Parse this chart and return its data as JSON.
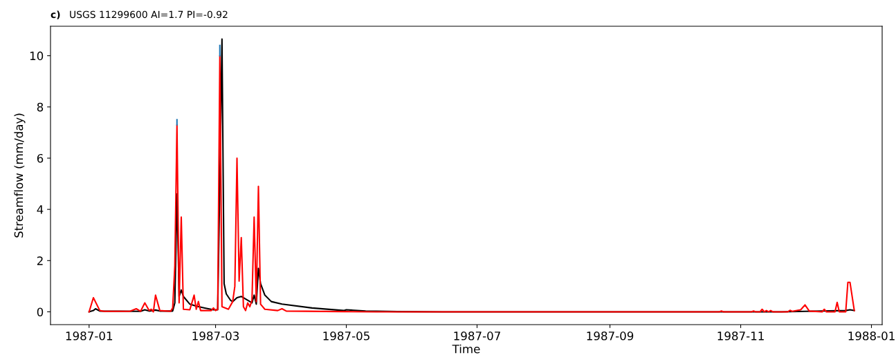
{
  "chart_data": {
    "type": "line",
    "title": "USGS 11299600 AI=1.7 PI=-0.92",
    "annotations": [
      "c)"
    ],
    "xlabel": "Time",
    "ylabel": "Streamflow (mm/day)",
    "xlim": [
      "1986-12-14",
      "1988-01-06"
    ],
    "xticks": [
      {
        "value": "1987-01-01",
        "label": "1987-01"
      },
      {
        "value": "1987-03-01",
        "label": "1987-03"
      },
      {
        "value": "1987-05-01",
        "label": "1987-05"
      },
      {
        "value": "1987-07-01",
        "label": "1987-07"
      },
      {
        "value": "1987-09-01",
        "label": "1987-09"
      },
      {
        "value": "1987-11-01",
        "label": "1987-11"
      },
      {
        "value": "1988-01-01",
        "label": "1988-01"
      }
    ],
    "ylim": [
      -0.5,
      11.15
    ],
    "yticks": [
      0,
      2,
      4,
      6,
      8,
      10
    ],
    "grid": false,
    "series": [
      {
        "color": "#000000",
        "x": [
          "1987-01-01",
          "1987-01-03",
          "1987-01-04",
          "1987-01-06",
          "1987-01-25",
          "1987-01-27",
          "1987-01-29",
          "1987-02-01",
          "1987-02-03",
          "1987-02-09",
          "1987-02-10",
          "1987-02-11",
          "1987-02-12",
          "1987-02-13",
          "1987-02-14",
          "1987-02-17",
          "1987-02-20",
          "1987-02-24",
          "1987-02-28",
          "1987-03-02",
          "1987-03-03",
          "1987-03-04",
          "1987-03-05",
          "1987-03-06",
          "1987-03-08",
          "1987-03-09",
          "1987-03-11",
          "1987-03-13",
          "1987-03-15",
          "1987-03-18",
          "1987-03-19",
          "1987-03-20",
          "1987-03-21",
          "1987-03-22",
          "1987-03-24",
          "1987-03-27",
          "1987-04-01",
          "1987-04-15",
          "1987-04-30",
          "1987-05-01",
          "1987-05-10",
          "1987-05-25",
          "1987-06-15",
          "1987-11-20",
          "1987-12-01",
          "1987-12-20",
          "1987-12-22",
          "1987-12-24"
        ],
        "values": [
          0,
          0.05,
          0.12,
          0.03,
          0.02,
          0.08,
          0.03,
          0.07,
          0.03,
          0.03,
          0.35,
          4.6,
          0.6,
          0.85,
          0.6,
          0.3,
          0.22,
          0.15,
          0.08,
          0.08,
          5.0,
          10.65,
          1.1,
          0.7,
          0.45,
          0.4,
          0.55,
          0.6,
          0.5,
          0.35,
          0.65,
          0.3,
          1.7,
          1.1,
          0.65,
          0.4,
          0.3,
          0.15,
          0.05,
          0.08,
          0.03,
          0.01,
          0,
          0,
          0.02,
          0.05,
          0.08,
          0.05
        ]
      },
      {
        "color": "#ff0000",
        "x": [
          "1987-01-01",
          "1987-01-03",
          "1987-01-06",
          "1987-01-08",
          "1987-01-20",
          "1987-01-23",
          "1987-01-25",
          "1987-01-27",
          "1987-01-29",
          "1987-01-30",
          "1987-01-31",
          "1987-02-01",
          "1987-02-03",
          "1987-02-08",
          "1987-02-09",
          "1987-02-10",
          "1987-02-11",
          "1987-02-12",
          "1987-02-13",
          "1987-02-14",
          "1987-02-17",
          "1987-02-19",
          "1987-02-20",
          "1987-02-21",
          "1987-02-22",
          "1987-02-27",
          "1987-02-28",
          "1987-03-01",
          "1987-03-02",
          "1987-03-03",
          "1987-03-04",
          "1987-03-07",
          "1987-03-09",
          "1987-03-10",
          "1987-03-11",
          "1987-03-12",
          "1987-03-13",
          "1987-03-14",
          "1987-03-15",
          "1987-03-16",
          "1987-03-17",
          "1987-03-18",
          "1987-03-19",
          "1987-03-20",
          "1987-03-21",
          "1987-03-22",
          "1987-03-24",
          "1987-03-30",
          "1987-04-01",
          "1987-04-03",
          "1987-04-30",
          "1987-05-15",
          "1987-10-22",
          "1987-10-23",
          "1987-10-24",
          "1987-11-06",
          "1987-11-07",
          "1987-11-08",
          "1987-11-10",
          "1987-11-11",
          "1987-11-12",
          "1987-11-13",
          "1987-11-14",
          "1987-11-15",
          "1987-11-16",
          "1987-11-23",
          "1987-11-24",
          "1987-11-25",
          "1987-11-29",
          "1987-12-01",
          "1987-12-03",
          "1987-12-09",
          "1987-12-10",
          "1987-12-11",
          "1987-12-15",
          "1987-12-16",
          "1987-12-17",
          "1987-12-20",
          "1987-12-21",
          "1987-12-22",
          "1987-12-24"
        ],
        "values": [
          0,
          0.55,
          0.05,
          0.02,
          0.02,
          0.12,
          0.02,
          0.35,
          0.05,
          0.1,
          0,
          0.65,
          0.05,
          0.02,
          0.15,
          1.8,
          7.3,
          0.35,
          3.7,
          0.1,
          0.08,
          0.65,
          0.1,
          0.4,
          0.05,
          0.05,
          0.15,
          0.05,
          0.1,
          10.0,
          0.2,
          0.1,
          0.4,
          1.0,
          6.0,
          1.2,
          2.9,
          0.2,
          0.05,
          0.35,
          0.2,
          0.45,
          3.7,
          0.4,
          4.9,
          0.3,
          0.1,
          0.05,
          0.12,
          0.03,
          0.01,
          0,
          0,
          0.03,
          0,
          0,
          0.03,
          0,
          0,
          0.1,
          0,
          0.05,
          0,
          0.05,
          0,
          0,
          0.06,
          0.02,
          0.08,
          0.27,
          0.03,
          0,
          0.1,
          0,
          0,
          0.37,
          0,
          0,
          1.15,
          1.15,
          0.05
        ]
      },
      {
        "color": "#1f77b4",
        "x": [
          "1987-02-11",
          "1987-02-11",
          "1987-02-20",
          "1987-03-03",
          "1987-03-03"
        ],
        "values": [
          7.5,
          7.3,
          null,
          10.4,
          10.0
        ]
      }
    ]
  }
}
